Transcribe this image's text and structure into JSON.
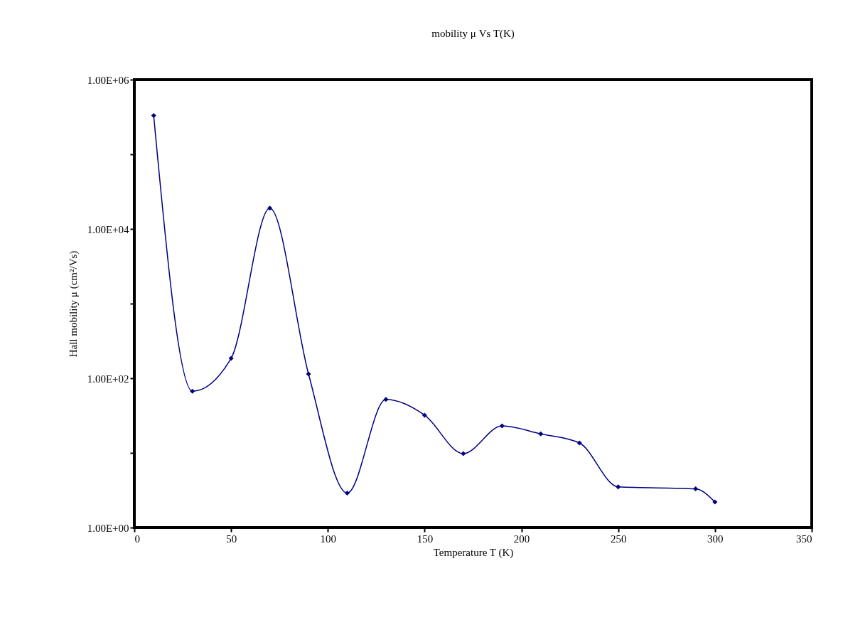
{
  "chart_data": {
    "type": "line",
    "title": "mobility μ  Vs  T(K)",
    "xlabel": "Temperature T  (K)",
    "ylabel": "Hall mobility μ (cm²/Vs)",
    "x": [
      10,
      30,
      50,
      70,
      90,
      110,
      130,
      150,
      170,
      190,
      210,
      230,
      250,
      290,
      300
    ],
    "series": [
      {
        "color": "#000080",
        "values": [
          330000,
          67,
          185,
          19000,
          114,
          2.9,
          52,
          32,
          9.8,
          23,
          18,
          13.6,
          3.5,
          3.3,
          2.2
        ]
      }
    ],
    "xlim": [
      0,
      350
    ],
    "xticks": [
      0,
      50,
      100,
      150,
      200,
      250,
      300,
      350
    ],
    "ylim": [
      1,
      1000000
    ],
    "log": true,
    "yticks": [
      {
        "value": 1,
        "label": "1.00E+00"
      },
      {
        "value": 10,
        "label": null
      },
      {
        "value": 100,
        "label": "1.00E+02"
      },
      {
        "value": 1000,
        "label": null
      },
      {
        "value": 10000,
        "label": "1.00E+04"
      },
      {
        "value": 100000,
        "label": null
      },
      {
        "value": 1000000,
        "label": "1.00E+06"
      }
    ],
    "grid": false,
    "marker": "diamond",
    "line_style": "solid"
  }
}
